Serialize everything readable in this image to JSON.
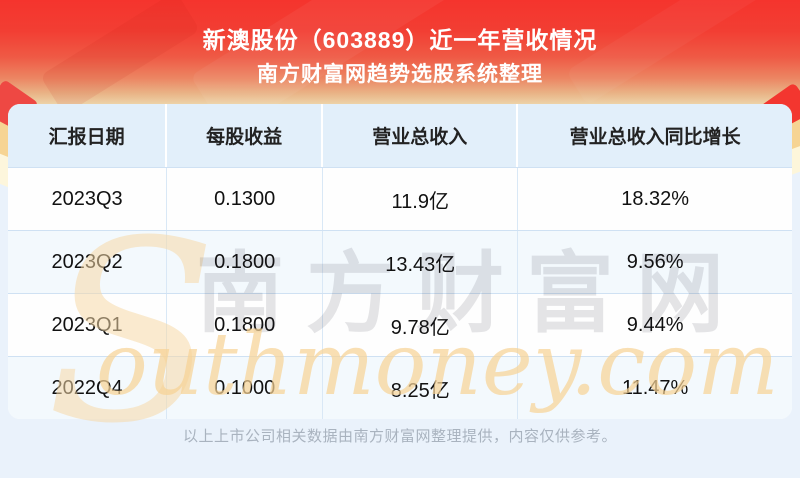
{
  "header": {
    "title": "新澳股份（603889）近一年营收情况",
    "subtitle": "南方财富网趋势选股系统整理"
  },
  "table": {
    "columns": [
      "汇报日期",
      "每股收益",
      "营业总收入",
      "营业总收入同比增长"
    ],
    "rows": [
      [
        "2023Q3",
        "0.1300",
        "11.9亿",
        "18.32%"
      ],
      [
        "2023Q2",
        "0.1800",
        "13.43亿",
        "9.56%"
      ],
      [
        "2023Q1",
        "0.1800",
        "9.78亿",
        "9.44%"
      ],
      [
        "2022Q4",
        "0.1000",
        "8.25亿",
        "11.47%"
      ]
    ]
  },
  "footer": {
    "disclaimer": "以上上市公司相关数据由南方财富网整理提供，内容仅供参考。"
  },
  "watermark": {
    "initial": "S",
    "cn": "南方财富网",
    "script": "outhmoney.com"
  },
  "colors": {
    "banner_red": "#f5342d",
    "banner_fade": "#edd3a8",
    "header_bg": "#e2effa",
    "row_alt": "#f3f9fd",
    "page_bg": "#eaf2fb",
    "cell_text": "#111111",
    "muted_text": "#a9b3bf",
    "watermark_orange": "#f6d296"
  },
  "chart_data": {
    "type": "table",
    "title": "新澳股份（603889）近一年营收情况",
    "subtitle": "南方财富网趋势选股系统整理",
    "columns": [
      "汇报日期",
      "每股收益",
      "营业总收入",
      "营业总收入同比增长"
    ],
    "categories": [
      "2023Q3",
      "2023Q2",
      "2023Q1",
      "2022Q4"
    ],
    "series": [
      {
        "name": "每股收益",
        "values": [
          0.13,
          0.18,
          0.18,
          0.1
        ]
      },
      {
        "name": "营业总收入(亿)",
        "values": [
          11.9,
          13.43,
          9.78,
          8.25
        ]
      },
      {
        "name": "营业总收入同比增长(%)",
        "values": [
          18.32,
          9.56,
          9.44,
          11.47
        ]
      }
    ]
  }
}
